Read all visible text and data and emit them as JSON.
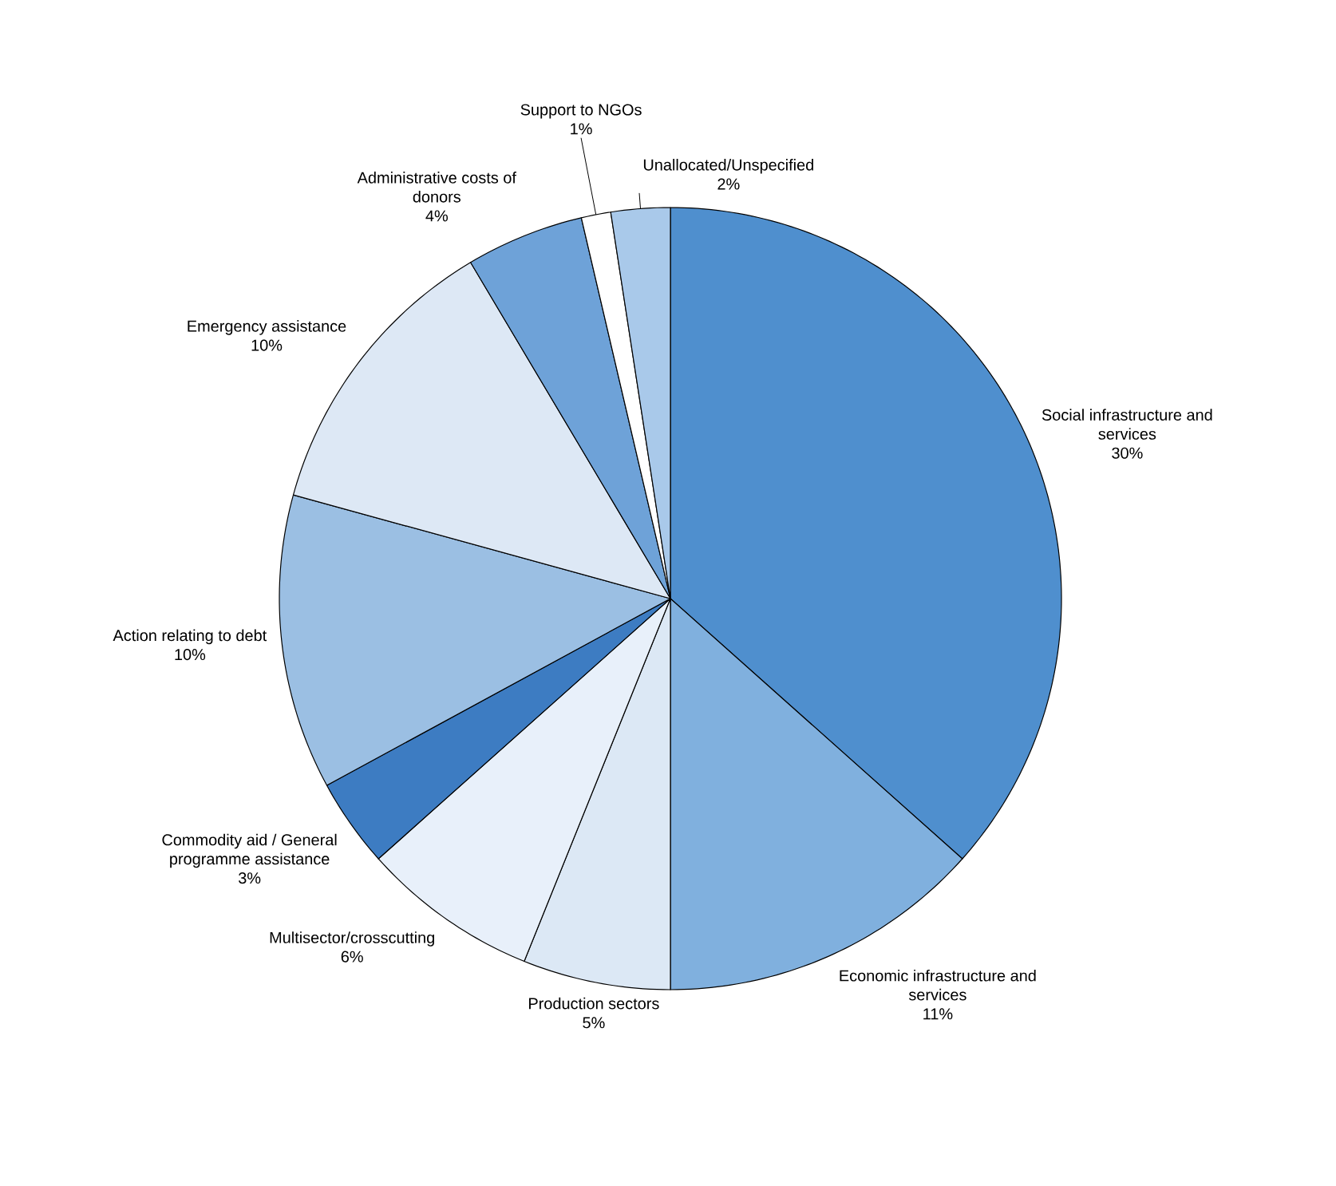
{
  "chart_data": {
    "type": "pie",
    "categories": [
      "Social infrastructure and services",
      "Economic infrastructure and services",
      "Production sectors",
      "Multisector/crosscutting",
      "Commodity aid / General programme assistance",
      "Action relating to debt",
      "Emergency assistance",
      "Administrative costs of donors",
      "Support to NGOs",
      "Unallocated/Unspecified"
    ],
    "values": [
      30,
      11,
      5,
      6,
      3,
      10,
      10,
      4,
      1,
      2
    ],
    "value_labels": [
      "30%",
      "11%",
      "5%",
      "6%",
      "3%",
      "10%",
      "10%",
      "4%",
      "1%",
      "2%"
    ],
    "colors": [
      "#4f8fce",
      "#80b0de",
      "#dce8f5",
      "#e8f0fa",
      "#3d7cc2",
      "#9bbfe3",
      "#dde8f5",
      "#6ea2d8",
      "#ffffff",
      "#a9c9ea"
    ]
  }
}
